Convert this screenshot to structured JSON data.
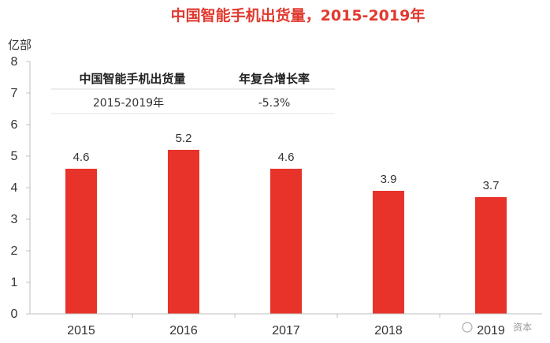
{
  "chart_data": {
    "type": "bar",
    "title": "中国智能手机出货量，2015-2019年",
    "ylabel": "亿部",
    "xlabel": "",
    "categories": [
      "2015",
      "2016",
      "2017",
      "2018",
      "2019"
    ],
    "values": [
      4.6,
      5.2,
      4.6,
      3.9,
      3.7
    ],
    "value_labels": [
      "4.6",
      "5.2",
      "4.6",
      "3.9",
      "3.7"
    ],
    "ylim": [
      0,
      8
    ],
    "yticks": [
      "0",
      "1",
      "2",
      "3",
      "4",
      "5",
      "6",
      "7",
      "8"
    ],
    "grid": false,
    "bar_color": "#e8332a",
    "inset_table": {
      "headers": [
        "中国智能手机出货量",
        "年复合增长率"
      ],
      "row": [
        "2015-2019年",
        "-5.3%"
      ]
    }
  },
  "watermark": "资本"
}
